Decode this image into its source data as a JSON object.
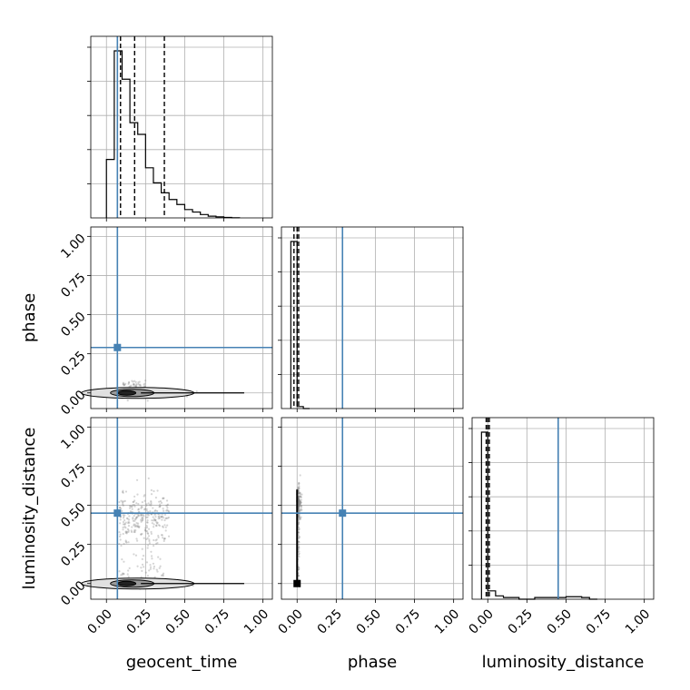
{
  "chart_data": {
    "type": "corner",
    "parameters": [
      "geocent_time",
      "phase",
      "luminosity_distance"
    ],
    "truths": {
      "geocent_time": 0.07,
      "phase": 0.29,
      "luminosity_distance": 0.45
    },
    "truth_color": "#4682b4",
    "tick_labels": [
      "0.00",
      "0.25",
      "0.50",
      "0.75",
      "1.00"
    ],
    "axis_range": [
      -0.1,
      1.06
    ],
    "grid": true,
    "histograms": [
      {
        "parameter": "geocent_time",
        "bin_edges": [
          0.0,
          0.05,
          0.1,
          0.15,
          0.2,
          0.25,
          0.3,
          0.35,
          0.4,
          0.45,
          0.5,
          0.55,
          0.6,
          0.65,
          0.7,
          0.75,
          0.8,
          0.85
        ],
        "counts": [
          0.35,
          1.0,
          0.83,
          0.57,
          0.5,
          0.3,
          0.21,
          0.15,
          0.11,
          0.08,
          0.05,
          0.035,
          0.02,
          0.01,
          0.006,
          0.003,
          0.001
        ],
        "quantiles": [
          0.09,
          0.18,
          0.37
        ]
      },
      {
        "parameter": "phase",
        "bin_edges": [
          -0.04,
          0.0,
          0.04,
          0.08
        ],
        "counts": [
          1.0,
          0.012,
          0.0
        ],
        "quantiles": [
          -0.02,
          0.0,
          0.01
        ]
      },
      {
        "parameter": "luminosity_distance",
        "bin_edges": [
          -0.04,
          0.0,
          0.05,
          0.1,
          0.15,
          0.2,
          0.3,
          0.45,
          0.5,
          0.55,
          0.6,
          0.65,
          0.7
        ],
        "counts": [
          1.0,
          0.05,
          0.02,
          0.01,
          0.01,
          0.0,
          0.01,
          0.01,
          0.015,
          0.015,
          0.01,
          0.0
        ],
        "quantiles": [
          -0.01,
          0.0,
          0.01
        ]
      }
    ]
  }
}
